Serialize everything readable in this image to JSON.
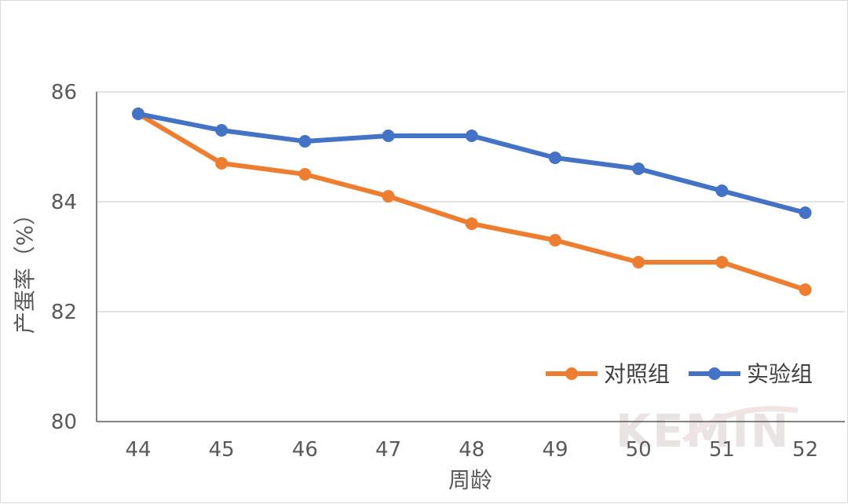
{
  "chart_data": {
    "type": "line",
    "title": "",
    "xlabel": "周龄",
    "ylabel": "产蛋率（%）",
    "x": [
      "44",
      "45",
      "46",
      "47",
      "48",
      "49",
      "50",
      "51",
      "52"
    ],
    "ylim": [
      80,
      86
    ],
    "yticks": [
      "80",
      "82",
      "84",
      "86"
    ],
    "grid": true,
    "legend_position": "bottom-right",
    "series": [
      {
        "name": "对照组",
        "color": "#ed7d31",
        "values": [
          85.6,
          84.7,
          84.5,
          84.1,
          83.6,
          83.3,
          82.9,
          82.9,
          82.4
        ]
      },
      {
        "name": "实验组",
        "color": "#4472c4",
        "values": [
          85.6,
          85.3,
          85.1,
          85.2,
          85.2,
          84.8,
          84.6,
          84.2,
          83.8
        ]
      }
    ]
  },
  "watermark": {
    "text": "KEMIN"
  }
}
